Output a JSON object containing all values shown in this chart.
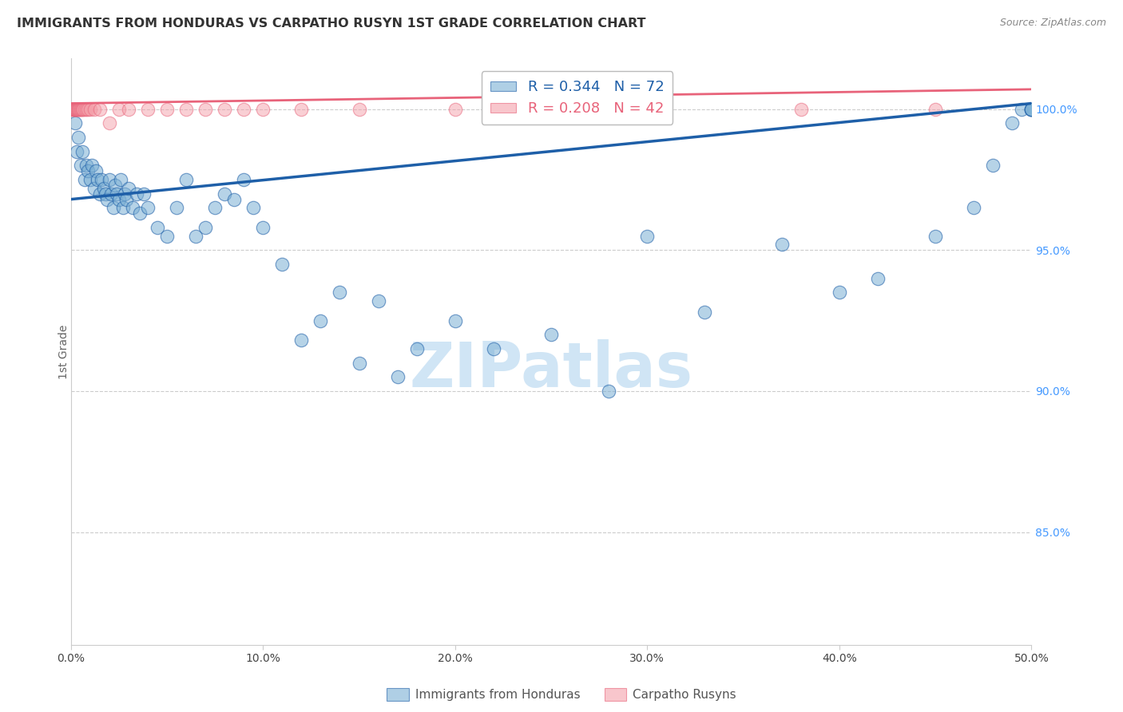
{
  "title": "IMMIGRANTS FROM HONDURAS VS CARPATHO RUSYN 1ST GRADE CORRELATION CHART",
  "source": "Source: ZipAtlas.com",
  "ylabel": "1st Grade",
  "right_yticks": [
    100.0,
    95.0,
    90.0,
    85.0
  ],
  "right_ytick_labels": [
    "100.0%",
    "95.0%",
    "90.0%",
    "85.0%"
  ],
  "xmin": 0.0,
  "xmax": 50.0,
  "ymin": 81.0,
  "ymax": 101.8,
  "legend_blue_r": "R = 0.344",
  "legend_blue_n": "N = 72",
  "legend_pink_r": "R = 0.208",
  "legend_pink_n": "N = 42",
  "blue_color": "#7BAFD4",
  "pink_color": "#F4A0AA",
  "trendline_blue": "#1E5FA8",
  "trendline_pink": "#E8637A",
  "watermark": "ZIPatlas",
  "watermark_color": "#D0E5F5",
  "blue_scatter_x": [
    0.2,
    0.3,
    0.4,
    0.5,
    0.6,
    0.7,
    0.8,
    0.9,
    1.0,
    1.1,
    1.2,
    1.3,
    1.4,
    1.5,
    1.6,
    1.7,
    1.8,
    1.9,
    2.0,
    2.1,
    2.2,
    2.3,
    2.4,
    2.5,
    2.6,
    2.7,
    2.8,
    2.9,
    3.0,
    3.2,
    3.4,
    3.6,
    3.8,
    4.0,
    4.5,
    5.0,
    5.5,
    6.0,
    6.5,
    7.0,
    7.5,
    8.0,
    8.5,
    9.0,
    9.5,
    10.0,
    11.0,
    12.0,
    13.0,
    14.0,
    15.0,
    16.0,
    17.0,
    18.0,
    20.0,
    22.0,
    25.0,
    28.0,
    30.0,
    33.0,
    37.0,
    40.0,
    42.0,
    45.0,
    47.0,
    48.0,
    49.0,
    49.5,
    50.0,
    50.0,
    50.0,
    50.0
  ],
  "blue_scatter_y": [
    99.5,
    98.5,
    99.0,
    98.0,
    98.5,
    97.5,
    98.0,
    97.8,
    97.5,
    98.0,
    97.2,
    97.8,
    97.5,
    97.0,
    97.5,
    97.2,
    97.0,
    96.8,
    97.5,
    97.0,
    96.5,
    97.3,
    97.0,
    96.8,
    97.5,
    96.5,
    97.0,
    96.8,
    97.2,
    96.5,
    97.0,
    96.3,
    97.0,
    96.5,
    95.8,
    95.5,
    96.5,
    97.5,
    95.5,
    95.8,
    96.5,
    97.0,
    96.8,
    97.5,
    96.5,
    95.8,
    94.5,
    91.8,
    92.5,
    93.5,
    91.0,
    93.2,
    90.5,
    91.5,
    92.5,
    91.5,
    92.0,
    90.0,
    95.5,
    92.8,
    95.2,
    93.5,
    94.0,
    95.5,
    96.5,
    98.0,
    99.5,
    100.0,
    100.0,
    100.0,
    100.0,
    100.0
  ],
  "pink_scatter_x": [
    0.05,
    0.1,
    0.12,
    0.15,
    0.18,
    0.2,
    0.22,
    0.25,
    0.28,
    0.3,
    0.32,
    0.35,
    0.38,
    0.4,
    0.42,
    0.45,
    0.5,
    0.55,
    0.6,
    0.65,
    0.7,
    0.8,
    0.9,
    1.0,
    1.2,
    1.5,
    2.0,
    2.5,
    3.0,
    4.0,
    5.0,
    6.0,
    7.0,
    8.0,
    9.0,
    10.0,
    12.0,
    15.0,
    20.0,
    28.0,
    38.0,
    45.0
  ],
  "pink_scatter_y": [
    100.0,
    100.0,
    100.0,
    100.0,
    100.0,
    100.0,
    100.0,
    100.0,
    100.0,
    100.0,
    100.0,
    100.0,
    100.0,
    100.0,
    100.0,
    100.0,
    100.0,
    100.0,
    100.0,
    100.0,
    100.0,
    100.0,
    100.0,
    100.0,
    100.0,
    100.0,
    99.5,
    100.0,
    100.0,
    100.0,
    100.0,
    100.0,
    100.0,
    100.0,
    100.0,
    100.0,
    100.0,
    100.0,
    100.0,
    100.0,
    100.0,
    100.0
  ],
  "xtick_positions": [
    0,
    10,
    20,
    30,
    40,
    50
  ],
  "xtick_labels": [
    "0.0%",
    "10.0%",
    "20.0%",
    "30.0%",
    "40.0%",
    "50.0%"
  ]
}
